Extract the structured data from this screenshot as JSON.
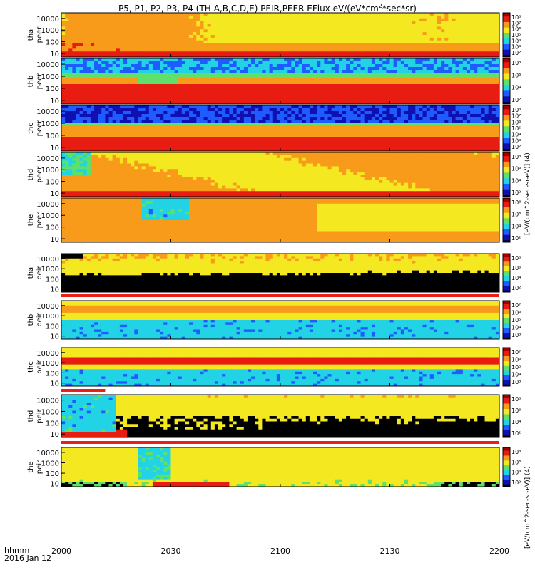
{
  "title": {
    "prefix": "P5, P1, P2, P3, P4 (TH-A,B,C,D,E) PEIR,PEER EFlux eV/(eV*cm",
    "sup": "2",
    "suffix": "*sec*sr)"
  },
  "x_axis": {
    "format_label": "hhmm",
    "date_label": "2016 Jan 12",
    "ticks": [
      "2000",
      "2030",
      "2100",
      "2130",
      "2200"
    ]
  },
  "colorbar_label_electrons": "[eV/(cm^2-sec-sr-eV)] (4)",
  "colorbar_label_ions": "[eV/(cm^2-sec-sr-eV)] (4)",
  "colors": {
    "black": "#000000",
    "dark_blue": "#1010b0",
    "blue": "#1f5cff",
    "cyan": "#22d3e6",
    "green": "#5ee06a",
    "yellow": "#f4e820",
    "orange": "#f89a1a",
    "red": "#e81c10",
    "dark_red": "#a00000",
    "axis": "#000000",
    "flag_bar": "#e8201a"
  },
  "chart_data": {
    "type": "heatmap",
    "x_range_minutes": [
      0,
      120
    ],
    "y_log_range": [
      5,
      30000
    ],
    "y_ticks": [
      "10",
      "100",
      "1000",
      "10000"
    ],
    "panels": [
      {
        "name": "tha peer",
        "label": "tha\npeer",
        "species": "electron",
        "cbar_ticks": [
          "10⁸",
          "10⁷",
          "10⁶",
          "10⁵",
          "10⁴",
          "10³",
          "10²"
        ]
      },
      {
        "name": "thb peer",
        "label": "thb\npeer",
        "species": "electron",
        "cbar_ticks": [
          "10⁸",
          "10⁶",
          "10⁴",
          "10²"
        ]
      },
      {
        "name": "thc peer",
        "label": "thc\npeer",
        "species": "electron",
        "cbar_ticks": [
          "10⁸",
          "10⁷",
          "10⁶",
          "10⁵",
          "10⁴",
          "10³",
          "10²"
        ]
      },
      {
        "name": "thd peer",
        "label": "thd\npeer",
        "species": "electron",
        "cbar_ticks": [
          "10⁸",
          "10⁶",
          "10⁴",
          "10²"
        ]
      },
      {
        "name": "the peer",
        "label": "the\npeer",
        "species": "electron",
        "cbar_ticks": [
          "10⁸",
          "10⁶",
          "10⁴",
          "10²"
        ]
      },
      {
        "name": "tha peir",
        "label": "tha\npeir",
        "species": "ion",
        "cbar_ticks": [
          "10⁸",
          "10⁶",
          "10⁴",
          "10²"
        ]
      },
      {
        "name": "thb peir",
        "label": "thb\npeir",
        "species": "ion",
        "cbar_ticks": [
          "10⁷",
          "10⁶",
          "10⁵",
          "10⁴",
          "10³"
        ]
      },
      {
        "name": "thc peir",
        "label": "thc\npeir",
        "species": "ion",
        "cbar_ticks": [
          "10⁷",
          "10⁶",
          "10⁵",
          "10⁴",
          "10³"
        ]
      },
      {
        "name": "thd peir",
        "label": "thd\npeir",
        "species": "ion",
        "cbar_ticks": [
          "10⁸",
          "10⁶",
          "10⁴",
          "10²"
        ]
      },
      {
        "name": "the peir",
        "label": "the\npeir",
        "species": "ion",
        "cbar_ticks": [
          "10⁸",
          "10⁶",
          "10⁴",
          "10²"
        ]
      }
    ]
  }
}
